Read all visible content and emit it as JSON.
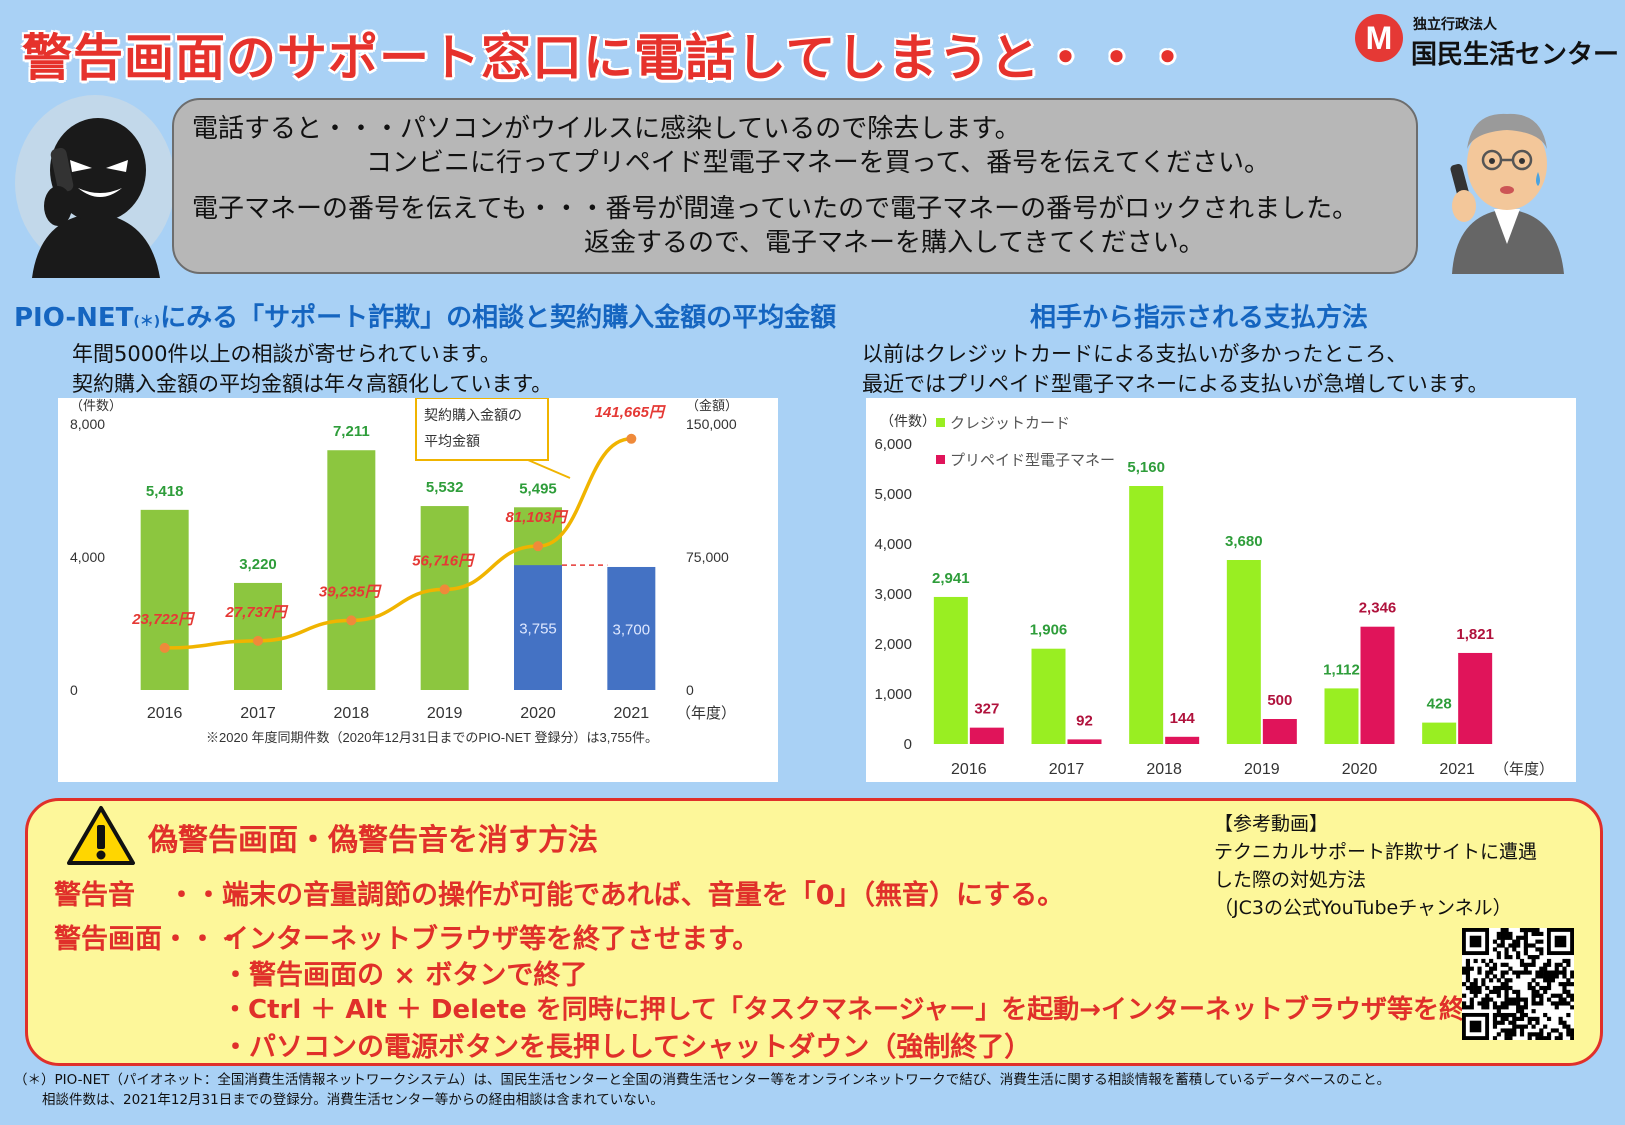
{
  "header": {
    "title": "警告画面のサポート窓口に電話してしまうと・・・",
    "org_sub": "独立行政法人",
    "org_name": "国民生活センター"
  },
  "speech": {
    "line1": "電話すると・・・パソコンがウイルスに感染しているので除去します。",
    "line2": "コンビニに行ってプリペイド型電子マネーを買って、番号を伝えてください。",
    "line3": "電子マネーの番号を伝えても・・・番号が間違っていたので電子マネーの番号がロックされました。",
    "line4": "返金するので、電子マネーを購入してきてください。"
  },
  "left_section": {
    "title_prefix": "PIO-NET",
    "title_note": "(＊)",
    "title_suffix": "にみる「サポート詐欺」の相談と契約購入金額の平均金額",
    "desc1": "年間5000件以上の相談が寄せられています。",
    "desc2": "契約購入金額の平均金額は年々高額化しています。"
  },
  "right_section": {
    "title": "相手から指示される支払方法",
    "desc1": "以前はクレジットカードによる支払いが多かったところ、",
    "desc2": "最近ではプリペイド型電子マネーによる支払いが急増しています。"
  },
  "chart_data": [
    {
      "type": "bar",
      "categories": [
        "2016",
        "2017",
        "2018",
        "2019",
        "2020",
        "2021"
      ],
      "x_unit": "（年度）",
      "y_unit_left": "（件数）",
      "y_unit_right": "（金額）",
      "ylim_left": [
        0,
        8000
      ],
      "ylim_right": [
        0,
        150000
      ],
      "yticks_left": [
        "0",
        "4,000",
        "8,000"
      ],
      "yticks_right": [
        "0",
        "75,000",
        "150,000"
      ],
      "series": [
        {
          "values": [
            5418,
            3220,
            7211,
            5532,
            5495,
            null
          ],
          "labels": [
            "5,418",
            "3,220",
            "7,211",
            "5,532",
            "5,495",
            ""
          ],
          "color": "#8cc63f"
        },
        {
          "values": [
            null,
            null,
            null,
            null,
            3755,
            3700
          ],
          "labels": [
            "",
            "",
            "",
            "",
            "3,755",
            "3,700"
          ],
          "color": "#4472c4"
        },
        {
          "type": "line",
          "values": [
            23722,
            27737,
            39235,
            56716,
            81103,
            141665
          ],
          "labels": [
            "23,722円",
            "27,737円",
            "39,235円",
            "56,716円",
            "81,103円",
            "141,665円"
          ],
          "color": "#f0b400"
        }
      ],
      "callout": [
        "契約購入金額の",
        "平均金額"
      ],
      "note": "※2020 年度同期件数（2020年12月31日までのPIO-NET 登録分）は3,755件。"
    },
    {
      "type": "bar",
      "categories": [
        "2016",
        "2017",
        "2018",
        "2019",
        "2020",
        "2021"
      ],
      "x_unit": "（年度）",
      "y_unit": "（件数）",
      "ylim": [
        0,
        6000
      ],
      "yticks": [
        "0",
        "1,000",
        "2,000",
        "3,000",
        "4,000",
        "5,000",
        "6,000"
      ],
      "series": [
        {
          "name": "クレジットカード",
          "values": [
            2941,
            1906,
            5160,
            3680,
            1112,
            428
          ],
          "labels": [
            "2,941",
            "1,906",
            "5,160",
            "3,680",
            "1,112",
            "428"
          ],
          "color": "#99ee22"
        },
        {
          "name": "プリペイド型電子マネー",
          "values": [
            327,
            92,
            144,
            500,
            2346,
            1821
          ],
          "labels": [
            "327",
            "92",
            "144",
            "500",
            "2,346",
            "1,821"
          ],
          "color": "#e0145a"
        }
      ]
    }
  ],
  "methods": {
    "title": "偽警告画面・偽警告音を消す方法",
    "sound_label": "警告音",
    "sound_dots": "・・・",
    "sound_text": "端末の音量調節の操作が可能であれば、音量を「0」（無音）にする。",
    "screen_label": "警告画面・・・",
    "screen_text": "インターネットブラウザ等を終了させます。",
    "bullet1": "・警告画面の × ボタンで終了",
    "bullet2": "・Ctrl ＋ Alt ＋ Delete を同時に押して「タスクマネージャー」を起動→インターネットブラウザ等を終了",
    "bullet3": "・パソコンの電源ボタンを長押ししてシャットダウン（強制終了）"
  },
  "reference": {
    "line1": "【参考動画】",
    "line2": "テクニカルサポート詐欺サイトに遭遇",
    "line3": "した際の対処方法",
    "line4": "（JC3の公式YouTubeチャンネル）"
  },
  "footnote": {
    "line1": "（＊）PIO-NET（パイオネット：全国消費生活情報ネットワークシステム）は、国民生活センターと全国の消費生活センター等をオンラインネットワークで結び、消費生活に関する相談情報を蓄積しているデータベースのこと。",
    "line2": "相談件数は、2021年12月31日までの登録分。消費生活センター等からの経由相談は含まれていない。"
  },
  "colors": {
    "title_red": "#e6322c",
    "section_blue": "#1565c0",
    "bg_blue": "#a9d1f5",
    "methods_bg": "#fdf79a"
  }
}
